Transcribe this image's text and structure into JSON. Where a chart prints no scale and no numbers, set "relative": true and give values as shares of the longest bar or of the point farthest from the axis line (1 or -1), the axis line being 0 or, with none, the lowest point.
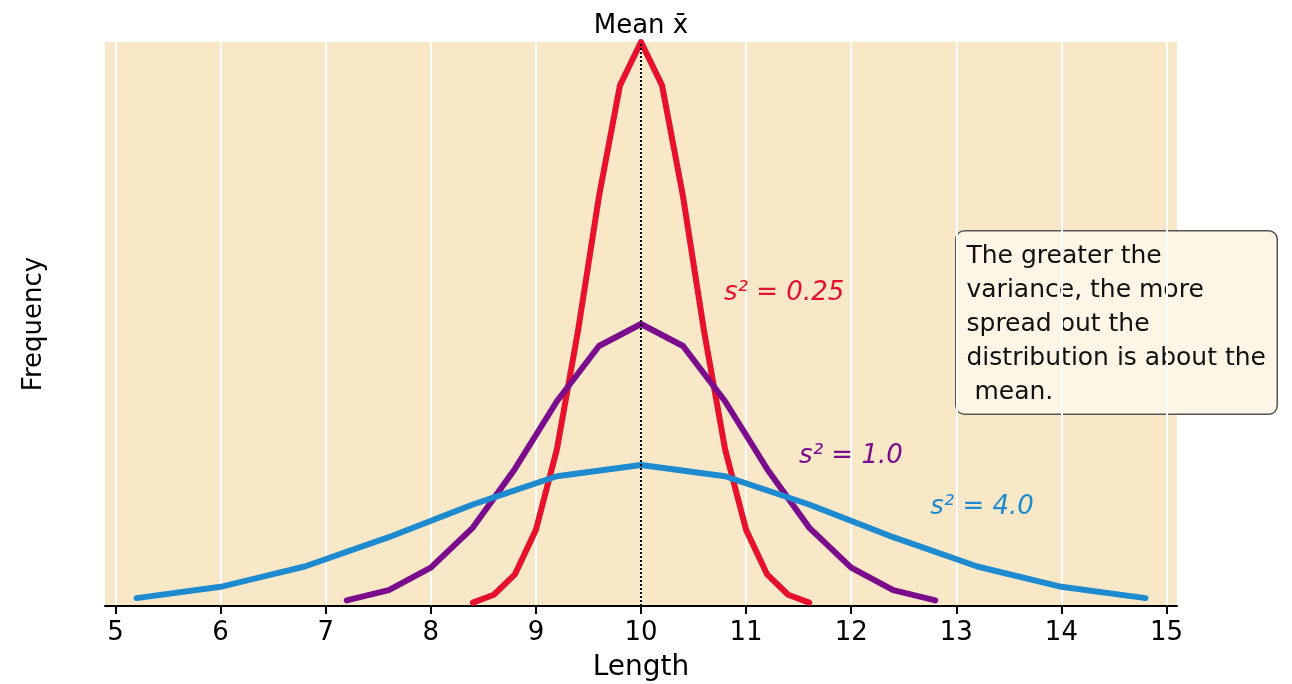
{
  "chart_data": {
    "type": "line",
    "xlabel": "Length",
    "ylabel": "Frequency",
    "relative": true,
    "xlim": [
      4.9,
      15.1
    ],
    "xticks": [
      5,
      6,
      7,
      8,
      9,
      10,
      11,
      12,
      13,
      14,
      15
    ],
    "grid": "x",
    "legend": false,
    "marker": "none",
    "line_style": "solid",
    "series": [
      {
        "name": "s² = 0.25",
        "color": "#e8112d",
        "x": [
          8.4,
          8.6,
          8.8,
          9,
          9.2,
          9.4,
          9.6,
          9.8,
          10,
          10.2,
          10.4,
          10.6,
          10.8,
          11,
          11.2,
          11.4,
          11.6
        ],
        "values": [
          0.006,
          0.02,
          0.056,
          0.135,
          0.278,
          0.487,
          0.726,
          0.923,
          1,
          0.923,
          0.726,
          0.487,
          0.278,
          0.135,
          0.056,
          0.02,
          0.006
        ]
      },
      {
        "name": "s² = 1.0",
        "color": "#7b0c8c",
        "x": [
          7.2,
          7.6,
          8,
          8.4,
          8.8,
          9.2,
          9.6,
          10,
          10.4,
          10.8,
          11.2,
          11.6,
          12,
          12.4,
          12.8
        ],
        "values": [
          0.01,
          0.028,
          0.068,
          0.139,
          0.243,
          0.363,
          0.461,
          0.5,
          0.461,
          0.363,
          0.243,
          0.139,
          0.068,
          0.028,
          0.01
        ]
      },
      {
        "name": "s² = 4.0",
        "color": "#1e8bd0",
        "x": [
          5.2,
          6,
          6.8,
          7.6,
          8.4,
          9.2,
          10,
          10.8,
          11.6,
          12.4,
          13.2,
          14,
          14.8
        ],
        "values": [
          0.014,
          0.034,
          0.07,
          0.122,
          0.18,
          0.23,
          0.25,
          0.23,
          0.18,
          0.122,
          0.07,
          0.034,
          0.014
        ]
      }
    ],
    "ref_lines": [
      {
        "axis": "x",
        "value": 10,
        "label": "Mean x̄",
        "color": "#000000",
        "line_style": "dotted"
      }
    ],
    "annotations": [
      "The greater the variance, the more spread out the distribution is about the mean."
    ]
  }
}
